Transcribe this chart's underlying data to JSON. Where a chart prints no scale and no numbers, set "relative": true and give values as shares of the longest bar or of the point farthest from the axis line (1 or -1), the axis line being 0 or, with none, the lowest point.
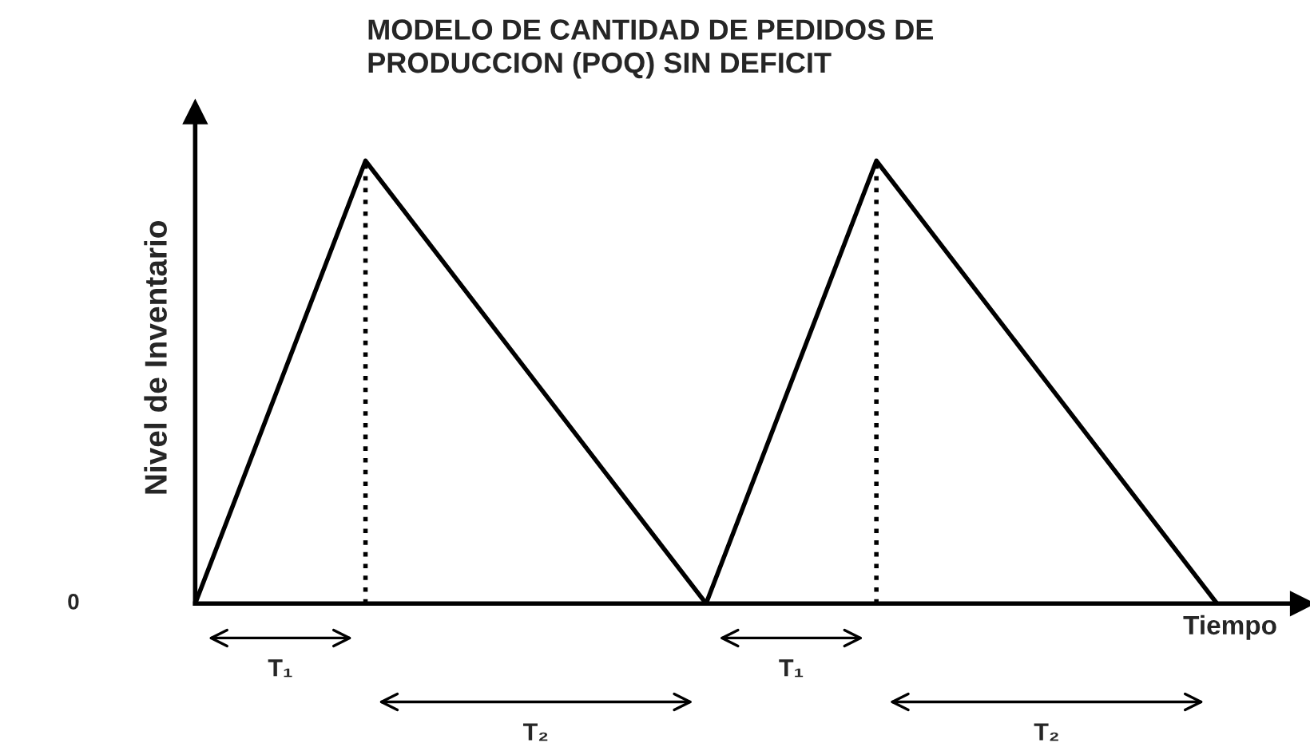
{
  "chart_data": {
    "type": "line",
    "title": "MODELO DE CANTIDAD DE PEDIDOS DE\nPRODUCCION (POQ) SIN DEFICIT",
    "xlabel": "Tiempo",
    "ylabel": "Nivel de Inventario",
    "relative": true,
    "categories": [
      null,
      null,
      null,
      null,
      null,
      null,
      null
    ],
    "legend": false,
    "marker": "none",
    "line_style": "solid",
    "series": [
      {
        "color": "#000000",
        "values": [
          0,
          1,
          0.5,
          0,
          1,
          0.5,
          0
        ]
      }
    ],
    "annotations": [
      "0",
      "T₁",
      "T₂",
      "T₁",
      "T₂"
    ]
  }
}
